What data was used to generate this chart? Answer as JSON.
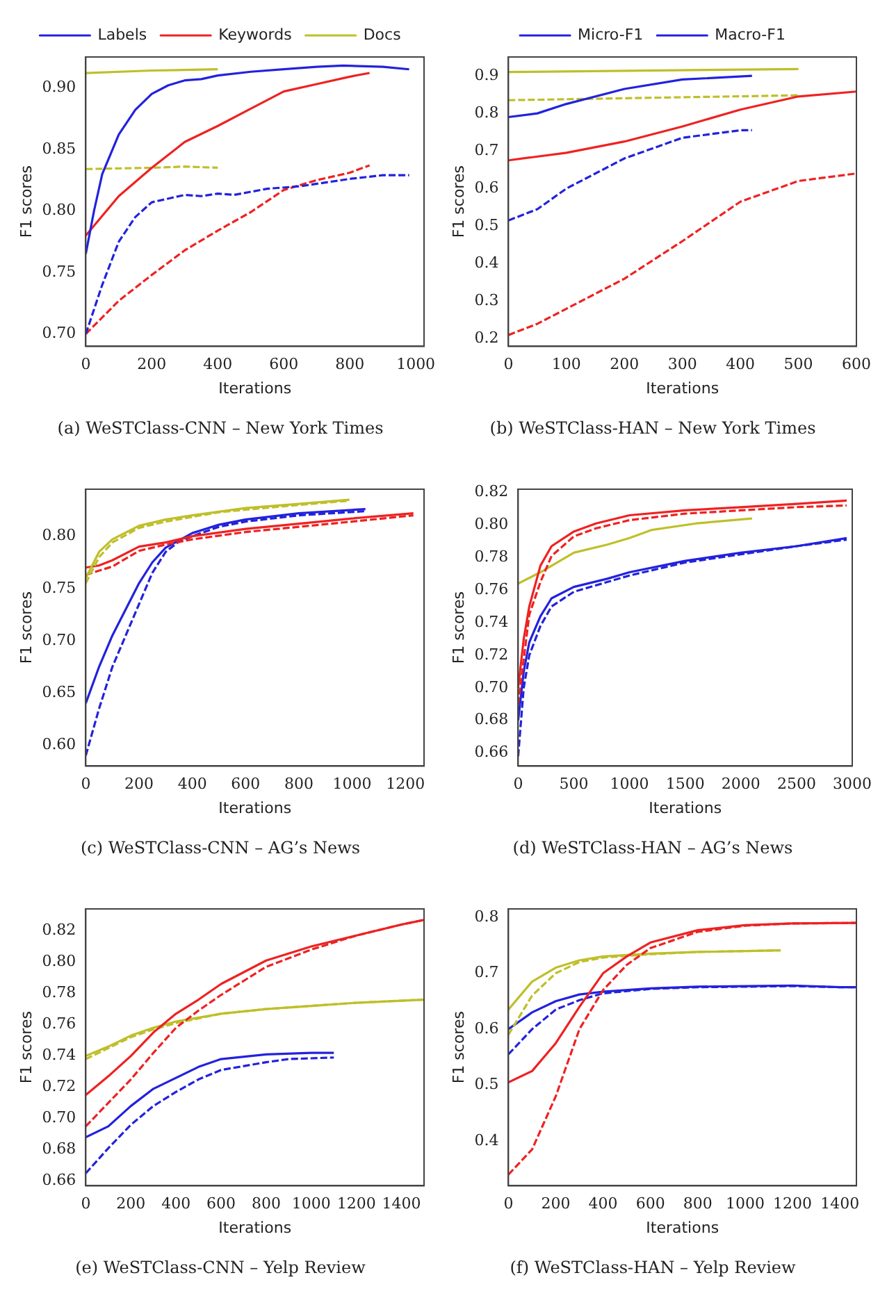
{
  "chart_data": [
    {
      "type": "line",
      "title": "(a) WeSTClass-CNN – New York Times",
      "xlabel": "Iterations",
      "ylabel": "F1 scores",
      "legend": "top",
      "xlim": [
        0,
        1025
      ],
      "xticks": [
        0,
        200,
        400,
        600,
        800,
        1000
      ],
      "ylim": [
        0.69,
        0.925
      ],
      "yticks": [
        {
          "value": 0.7,
          "label": "0.70"
        },
        {
          "value": 0.75,
          "label": "0.75"
        },
        {
          "value": 0.8,
          "label": "0.80"
        },
        {
          "value": 0.85,
          "label": "0.85"
        },
        {
          "value": 0.9,
          "label": "0.90"
        }
      ],
      "series": [
        {
          "name": "Labels",
          "color": "#2222dd",
          "line_style": "solid",
          "x": [
            0,
            25,
            50,
            100,
            150,
            200,
            250,
            300,
            350,
            400,
            500,
            600,
            700,
            780,
            900,
            980
          ],
          "values": [
            0.765,
            0.8,
            0.83,
            0.862,
            0.882,
            0.895,
            0.902,
            0.906,
            0.907,
            0.91,
            0.913,
            0.915,
            0.917,
            0.918,
            0.917,
            0.915
          ]
        },
        {
          "name": "Keywords",
          "color": "#ee2222",
          "line_style": "solid",
          "x": [
            0,
            100,
            200,
            300,
            400,
            500,
            600,
            700,
            800,
            860
          ],
          "values": [
            0.78,
            0.812,
            0.835,
            0.856,
            0.869,
            0.883,
            0.897,
            0.903,
            0.909,
            0.912
          ]
        },
        {
          "name": "Docs",
          "color": "#bfbf2a",
          "line_style": "solid",
          "x": [
            0,
            200,
            400
          ],
          "values": [
            0.912,
            0.914,
            0.915
          ]
        },
        {
          "color": "#bfbf2a",
          "line_style": "dashed",
          "x": [
            0,
            200,
            300,
            400
          ],
          "values": [
            0.834,
            0.835,
            0.836,
            0.835
          ]
        },
        {
          "color": "#2222dd",
          "line_style": "dashed",
          "x": [
            0,
            50,
            100,
            150,
            200,
            300,
            350,
            400,
            450,
            550,
            650,
            800,
            900,
            980
          ],
          "values": [
            0.7,
            0.74,
            0.775,
            0.795,
            0.807,
            0.813,
            0.812,
            0.814,
            0.813,
            0.818,
            0.82,
            0.826,
            0.829,
            0.829
          ]
        },
        {
          "color": "#ee2222",
          "line_style": "dashed",
          "x": [
            0,
            100,
            200,
            300,
            400,
            500,
            600,
            700,
            800,
            860
          ],
          "values": [
            0.7,
            0.727,
            0.748,
            0.768,
            0.784,
            0.799,
            0.817,
            0.825,
            0.831,
            0.837
          ]
        }
      ]
    },
    {
      "type": "line",
      "title": "(b) WeSTClass-HAN – New York Times",
      "xlabel": "Iterations",
      "ylabel": "F1 scores",
      "legend": "top",
      "xlim": [
        0,
        600
      ],
      "xticks": [
        0,
        100,
        200,
        300,
        400,
        500,
        600
      ],
      "ylim": [
        0.18,
        0.95
      ],
      "yticks": [
        0.2,
        0.3,
        0.4,
        0.5,
        0.6,
        0.7,
        0.8,
        0.9
      ],
      "series": [
        {
          "name": "Micro-F1",
          "color": "#2222dd",
          "line_style": "dashed",
          "x": [
            0,
            50,
            100,
            200,
            300,
            400,
            420
          ],
          "values": [
            0.515,
            0.545,
            0.6,
            0.68,
            0.735,
            0.755,
            0.755
          ]
        },
        {
          "name": "Macro-F1",
          "color": "#2222dd",
          "line_style": "solid",
          "x": [
            0,
            50,
            100,
            200,
            300,
            420
          ],
          "values": [
            0.79,
            0.8,
            0.825,
            0.865,
            0.89,
            0.9
          ]
        },
        {
          "color": "#ee2222",
          "line_style": "solid",
          "x": [
            0,
            100,
            200,
            300,
            400,
            500,
            600
          ],
          "values": [
            0.675,
            0.695,
            0.725,
            0.765,
            0.81,
            0.845,
            0.858
          ]
        },
        {
          "color": "#bfbf2a",
          "line_style": "solid",
          "x": [
            0,
            500
          ],
          "values": [
            0.91,
            0.918
          ]
        },
        {
          "color": "#bfbf2a",
          "line_style": "dashed",
          "x": [
            0,
            500
          ],
          "values": [
            0.835,
            0.848
          ]
        },
        {
          "color": "#ee2222",
          "line_style": "dashed",
          "x": [
            0,
            50,
            100,
            200,
            300,
            400,
            500,
            600
          ],
          "values": [
            0.21,
            0.24,
            0.28,
            0.36,
            0.46,
            0.565,
            0.62,
            0.64
          ]
        }
      ]
    },
    {
      "type": "line",
      "title": "(c) WeSTClass-CNN – AG’s News",
      "xlabel": "Iterations",
      "ylabel": "F1 scores",
      "xlim": [
        0,
        1270
      ],
      "xticks": [
        0,
        200,
        400,
        600,
        800,
        1000,
        1200
      ],
      "ylim": [
        0.58,
        0.845
      ],
      "yticks": [
        {
          "value": 0.6,
          "label": "0.60"
        },
        0.65,
        {
          "value": 0.7,
          "label": "0.70"
        },
        0.75,
        {
          "value": 0.8,
          "label": "0.80"
        }
      ],
      "series": [
        {
          "color": "#bfbf2a",
          "line_style": "solid",
          "x": [
            0,
            50,
            100,
            200,
            300,
            400,
            600,
            800,
            990
          ],
          "values": [
            0.76,
            0.785,
            0.797,
            0.81,
            0.816,
            0.82,
            0.827,
            0.831,
            0.835
          ]
        },
        {
          "color": "#bfbf2a",
          "line_style": "dashed",
          "x": [
            0,
            50,
            100,
            200,
            300,
            500,
            800,
            990
          ],
          "values": [
            0.755,
            0.78,
            0.794,
            0.808,
            0.814,
            0.823,
            0.83,
            0.834
          ]
        },
        {
          "color": "#ee2222",
          "line_style": "solid",
          "x": [
            0,
            50,
            100,
            200,
            300,
            400,
            600,
            800,
            1000,
            1230
          ],
          "values": [
            0.77,
            0.772,
            0.777,
            0.79,
            0.794,
            0.8,
            0.807,
            0.812,
            0.817,
            0.822
          ]
        },
        {
          "color": "#ee2222",
          "line_style": "dashed",
          "x": [
            0,
            100,
            200,
            300,
            400,
            600,
            800,
            1000,
            1230
          ],
          "values": [
            0.763,
            0.771,
            0.786,
            0.792,
            0.797,
            0.804,
            0.809,
            0.814,
            0.82
          ]
        },
        {
          "color": "#2222dd",
          "line_style": "solid",
          "x": [
            0,
            50,
            100,
            200,
            250,
            300,
            400,
            500,
            600,
            800,
            1050
          ],
          "values": [
            0.64,
            0.675,
            0.705,
            0.755,
            0.775,
            0.789,
            0.803,
            0.811,
            0.816,
            0.822,
            0.826
          ]
        },
        {
          "color": "#2222dd",
          "line_style": "dashed",
          "x": [
            0,
            50,
            100,
            200,
            250,
            300,
            350,
            400,
            500,
            600,
            800,
            1050
          ],
          "values": [
            0.59,
            0.635,
            0.675,
            0.735,
            0.765,
            0.785,
            0.795,
            0.8,
            0.809,
            0.814,
            0.82,
            0.824
          ]
        }
      ]
    },
    {
      "type": "line",
      "title": "(d) WeSTClass-HAN – AG’s News",
      "xlabel": "Iterations",
      "ylabel": "F1 scores",
      "xlim": [
        0,
        3000
      ],
      "xticks": [
        0,
        500,
        1000,
        1500,
        2000,
        2500,
        3000
      ],
      "ylim": [
        0.652,
        0.822
      ],
      "yticks": [
        {
          "value": 0.66,
          "label": "0.66"
        },
        {
          "value": 0.68,
          "label": "0.68"
        },
        {
          "value": 0.7,
          "label": "0.70"
        },
        {
          "value": 0.72,
          "label": "0.72"
        },
        {
          "value": 0.74,
          "label": "0.74"
        },
        {
          "value": 0.76,
          "label": "0.76"
        },
        {
          "value": 0.78,
          "label": "0.78"
        },
        {
          "value": 0.8,
          "label": "0.80"
        },
        {
          "value": 0.82,
          "label": "0.82"
        }
      ],
      "series": [
        {
          "color": "#ee2222",
          "line_style": "solid",
          "x": [
            0,
            50,
            100,
            200,
            300,
            500,
            700,
            1000,
            1500,
            2000,
            2500,
            2950
          ],
          "values": [
            0.7,
            0.73,
            0.75,
            0.775,
            0.787,
            0.796,
            0.801,
            0.806,
            0.809,
            0.811,
            0.813,
            0.815
          ]
        },
        {
          "color": "#ee2222",
          "line_style": "dashed",
          "x": [
            0,
            100,
            200,
            300,
            500,
            700,
            1000,
            1500,
            2000,
            2500,
            2950
          ],
          "values": [
            0.69,
            0.745,
            0.765,
            0.781,
            0.793,
            0.798,
            0.803,
            0.807,
            0.809,
            0.811,
            0.812
          ]
        },
        {
          "color": "#bfbf2a",
          "line_style": "solid",
          "x": [
            0,
            200,
            500,
            800,
            1000,
            1200,
            1600,
            2100
          ],
          "values": [
            0.764,
            0.771,
            0.783,
            0.788,
            0.792,
            0.797,
            0.801,
            0.804
          ]
        },
        {
          "color": "#2222dd",
          "line_style": "solid",
          "x": [
            0,
            50,
            100,
            200,
            300,
            500,
            800,
            1000,
            1500,
            2000,
            2500,
            2950
          ],
          "values": [
            0.68,
            0.71,
            0.728,
            0.744,
            0.755,
            0.762,
            0.767,
            0.771,
            0.778,
            0.783,
            0.787,
            0.792
          ]
        },
        {
          "color": "#2222dd",
          "line_style": "dashed",
          "x": [
            0,
            50,
            100,
            200,
            300,
            500,
            800,
            1000,
            1500,
            2000,
            2500,
            2950
          ],
          "values": [
            0.658,
            0.7,
            0.72,
            0.738,
            0.75,
            0.759,
            0.765,
            0.769,
            0.777,
            0.782,
            0.787,
            0.791
          ]
        }
      ]
    },
    {
      "type": "line",
      "title": "(e) WeSTClass-CNN – Yelp Review",
      "xlabel": "Iterations",
      "ylabel": "F1 scores",
      "xlim": [
        0,
        1500
      ],
      "xticks": [
        0,
        200,
        400,
        600,
        800,
        1000,
        1200,
        1400
      ],
      "ylim": [
        0.657,
        0.834
      ],
      "yticks": [
        {
          "value": 0.66,
          "label": "0.66"
        },
        {
          "value": 0.68,
          "label": "0.68"
        },
        {
          "value": 0.7,
          "label": "0.70"
        },
        {
          "value": 0.72,
          "label": "0.72"
        },
        {
          "value": 0.74,
          "label": "0.74"
        },
        {
          "value": 0.76,
          "label": "0.76"
        },
        {
          "value": 0.78,
          "label": "0.78"
        },
        {
          "value": 0.8,
          "label": "0.80"
        },
        {
          "value": 0.82,
          "label": "0.82"
        }
      ],
      "series": [
        {
          "color": "#ee2222",
          "line_style": "solid",
          "x": [
            0,
            100,
            200,
            300,
            400,
            500,
            600,
            800,
            1000,
            1200,
            1400,
            1500
          ],
          "values": [
            0.715,
            0.727,
            0.74,
            0.755,
            0.767,
            0.776,
            0.786,
            0.801,
            0.81,
            0.817,
            0.824,
            0.827
          ]
        },
        {
          "color": "#ee2222",
          "line_style": "dashed",
          "x": [
            0,
            100,
            200,
            300,
            400,
            500,
            600,
            800,
            1000,
            1200,
            1400,
            1500
          ],
          "values": [
            0.695,
            0.71,
            0.725,
            0.742,
            0.758,
            0.769,
            0.779,
            0.797,
            0.808,
            0.817,
            0.824,
            0.827
          ]
        },
        {
          "color": "#bfbf2a",
          "line_style": "solid",
          "x": [
            0,
            100,
            200,
            300,
            400,
            600,
            800,
            1000,
            1200,
            1500
          ],
          "values": [
            0.74,
            0.746,
            0.753,
            0.758,
            0.762,
            0.767,
            0.77,
            0.772,
            0.774,
            0.776
          ]
        },
        {
          "color": "#bfbf2a",
          "line_style": "dashed",
          "x": [
            0,
            100,
            200,
            300,
            400,
            600,
            800,
            1000,
            1200,
            1500
          ],
          "values": [
            0.738,
            0.745,
            0.752,
            0.757,
            0.761,
            0.767,
            0.77,
            0.772,
            0.774,
            0.776
          ]
        },
        {
          "color": "#2222dd",
          "line_style": "solid",
          "x": [
            0,
            100,
            200,
            300,
            400,
            500,
            600,
            800,
            1000,
            1100
          ],
          "values": [
            0.688,
            0.695,
            0.708,
            0.719,
            0.726,
            0.733,
            0.738,
            0.741,
            0.742,
            0.742
          ]
        },
        {
          "color": "#2222dd",
          "line_style": "dashed",
          "x": [
            0,
            100,
            200,
            300,
            400,
            500,
            600,
            800,
            900,
            1100
          ],
          "values": [
            0.665,
            0.681,
            0.696,
            0.708,
            0.717,
            0.725,
            0.731,
            0.736,
            0.738,
            0.739
          ]
        }
      ]
    },
    {
      "type": "line",
      "title": "(f) WeSTClass-HAN – Yelp Review",
      "xlabel": "Iterations",
      "ylabel": "F1 scores",
      "xlim": [
        0,
        1470
      ],
      "xticks": [
        0,
        200,
        400,
        600,
        800,
        1000,
        1200,
        1400
      ],
      "ylim": [
        0.32,
        0.815
      ],
      "yticks": [
        0.4,
        0.5,
        0.6,
        0.7,
        0.8
      ],
      "series": [
        {
          "color": "#ee2222",
          "line_style": "solid",
          "x": [
            0,
            100,
            200,
            300,
            400,
            500,
            600,
            800,
            1000,
            1200,
            1470
          ],
          "values": [
            0.505,
            0.525,
            0.575,
            0.64,
            0.7,
            0.73,
            0.755,
            0.777,
            0.786,
            0.789,
            0.79
          ]
        },
        {
          "color": "#ee2222",
          "line_style": "dashed",
          "x": [
            0,
            100,
            200,
            300,
            400,
            500,
            600,
            800,
            1000,
            1200,
            1470
          ],
          "values": [
            0.34,
            0.385,
            0.48,
            0.6,
            0.67,
            0.715,
            0.745,
            0.774,
            0.785,
            0.789,
            0.79
          ]
        },
        {
          "color": "#bfbf2a",
          "line_style": "solid",
          "x": [
            0,
            100,
            200,
            300,
            400,
            600,
            800,
            1150
          ],
          "values": [
            0.635,
            0.685,
            0.71,
            0.723,
            0.73,
            0.735,
            0.738,
            0.741
          ]
        },
        {
          "color": "#bfbf2a",
          "line_style": "dashed",
          "x": [
            0,
            100,
            200,
            300,
            400,
            600,
            800,
            1150
          ],
          "values": [
            0.59,
            0.66,
            0.7,
            0.72,
            0.728,
            0.734,
            0.738,
            0.741
          ]
        },
        {
          "color": "#2222dd",
          "line_style": "solid",
          "x": [
            0,
            100,
            200,
            300,
            400,
            600,
            800,
            1000,
            1200,
            1400,
            1470
          ],
          "values": [
            0.6,
            0.63,
            0.65,
            0.662,
            0.667,
            0.673,
            0.676,
            0.677,
            0.678,
            0.675,
            0.675
          ]
        },
        {
          "color": "#2222dd",
          "line_style": "dashed",
          "x": [
            0,
            100,
            200,
            300,
            400,
            600,
            800,
            1000,
            1200,
            1400,
            1470
          ],
          "values": [
            0.555,
            0.6,
            0.635,
            0.652,
            0.664,
            0.672,
            0.675,
            0.676,
            0.677,
            0.675,
            0.675
          ]
        }
      ]
    }
  ]
}
